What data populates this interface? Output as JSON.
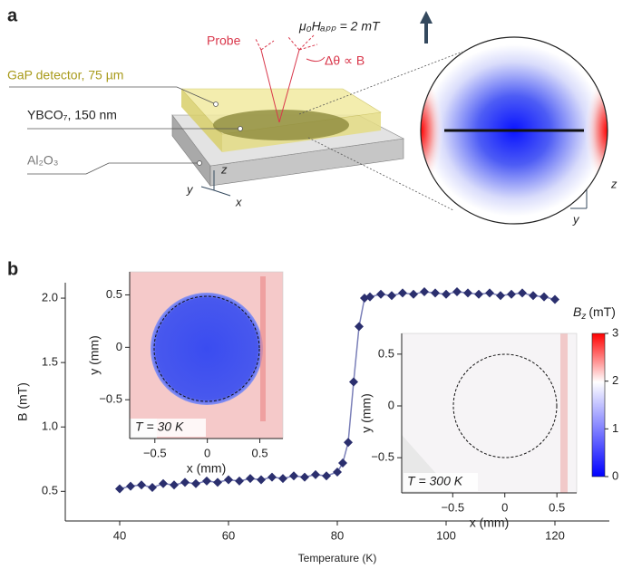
{
  "panel_a": {
    "label": "a",
    "probe": "Probe",
    "field": "μ₀Hₐₚₚ = 2 mT",
    "rotation": "Δθ ∝ B",
    "detector": "GaP detector, 75 µm",
    "film": "YBCO₇, 150 nm",
    "substrate": "Al₂O₃",
    "axes": [
      "z",
      "y",
      "x"
    ],
    "map_axes": [
      "z",
      "y"
    ]
  },
  "panel_b": {
    "label": "b"
  },
  "chart_data": [
    {
      "type": "line",
      "xlabel": "Temperature (K)",
      "ylabel": "B (mT)",
      "xlim": [
        30,
        130
      ],
      "ylim": [
        0.27,
        2.12
      ],
      "xticks": [
        40,
        60,
        80,
        100,
        120
      ],
      "yticks": [
        0.5,
        {
          "value": 1,
          "label": "1.0"
        },
        1.5,
        {
          "value": 2,
          "label": "2.0"
        }
      ],
      "x": [
        40,
        42,
        44,
        46,
        48,
        50,
        52,
        54,
        56,
        58,
        60,
        62,
        64,
        66,
        68,
        70,
        72,
        74,
        76,
        78,
        80,
        81,
        82,
        83,
        84,
        85,
        86,
        88,
        90,
        92,
        94,
        96,
        98,
        100,
        102,
        104,
        106,
        108,
        110,
        112,
        114,
        116,
        118,
        120
      ],
      "series": [
        {
          "color": "#2b2f6e",
          "values": [
            0.52,
            0.54,
            0.55,
            0.53,
            0.56,
            0.55,
            0.57,
            0.56,
            0.58,
            0.57,
            0.59,
            0.58,
            0.6,
            0.59,
            0.61,
            0.6,
            0.62,
            0.61,
            0.63,
            0.62,
            0.65,
            0.72,
            0.88,
            1.35,
            1.78,
            2.0,
            2.01,
            2.03,
            2.02,
            2.04,
            2.03,
            2.05,
            2.04,
            2.03,
            2.05,
            2.04,
            2.03,
            2.04,
            2.02,
            2.03,
            2.04,
            2.02,
            2.01,
            1.99
          ]
        }
      ]
    },
    {
      "type": "heatmap",
      "xlabel": "x (mm)",
      "ylabel": "y (mm)",
      "annotation": "T = 30 K",
      "xlim": [
        -0.74,
        0.72
      ],
      "ylim": [
        -0.87,
        0.72
      ],
      "xticks": [
        {
          "value": -0.5,
          "label": "−0.5"
        },
        0,
        0.5
      ],
      "yticks": [
        {
          "value": -0.5,
          "label": "−0.5"
        },
        0,
        0.5
      ]
    },
    {
      "type": "heatmap",
      "xlabel": "x (mm)",
      "ylabel": "y (mm)",
      "annotation": "T = 300 K",
      "xlim": [
        -0.99,
        0.69
      ],
      "ylim": [
        -0.84,
        0.7
      ],
      "xticks": [
        {
          "value": -0.5,
          "label": "−0.5"
        },
        0,
        0.5
      ],
      "yticks": [
        {
          "value": -0.5,
          "label": "−0.5"
        },
        0,
        0.5
      ],
      "colorbar": {
        "label": "B",
        "label_sub": "z",
        "unit": "(mT)",
        "lim": [
          0,
          3
        ],
        "ticks": [
          0,
          1,
          2,
          3
        ]
      }
    }
  ]
}
